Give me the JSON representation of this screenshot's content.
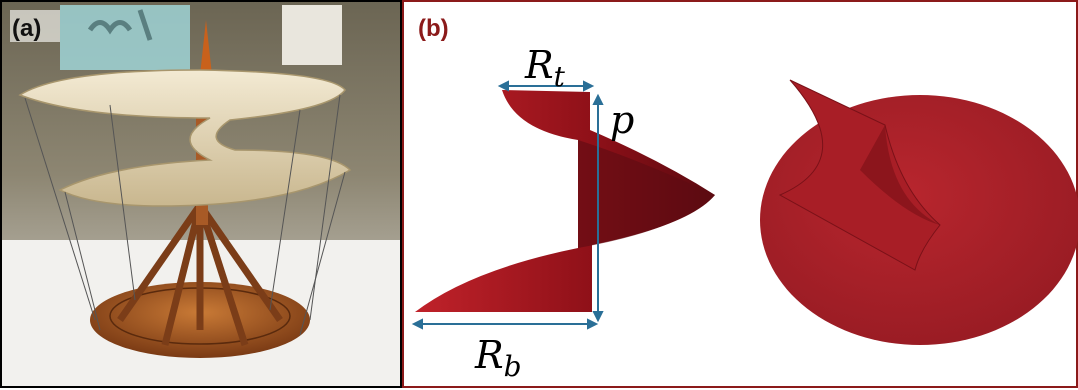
{
  "panels": [
    {
      "label": "(a)"
    },
    {
      "label": "(b)",
      "annotations": [
        {
          "base": "R",
          "sub": "t"
        },
        {
          "base": "p"
        },
        {
          "base": "R",
          "sub": "b"
        }
      ]
    }
  ]
}
